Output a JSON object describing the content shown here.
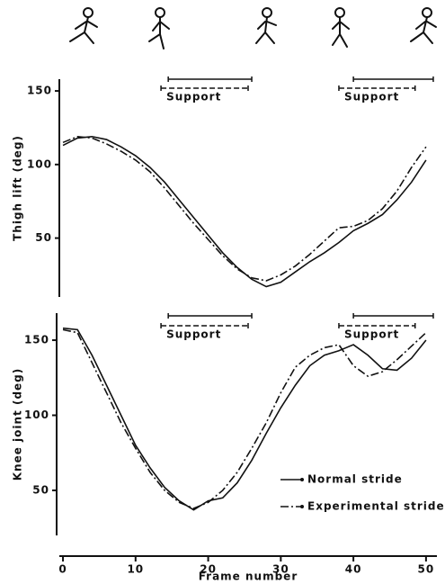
{
  "chart_data": [
    {
      "type": "line",
      "ylabel": "Thigh lift (deg)",
      "x": [
        0,
        2,
        4,
        6,
        8,
        10,
        12,
        14,
        16,
        18,
        20,
        22,
        24,
        26,
        28,
        30,
        32,
        34,
        36,
        38,
        40,
        42,
        44,
        46,
        48,
        50
      ],
      "xlim": [
        -0.5,
        51.5
      ],
      "ylim": [
        10,
        158
      ],
      "yticks": [
        50,
        100,
        150
      ],
      "series": [
        {
          "color": "#111111",
          "style": "solid",
          "values": [
            113,
            118,
            119,
            117,
            112,
            106,
            98,
            88,
            76,
            64,
            52,
            40,
            30,
            22,
            17,
            20,
            27,
            34,
            40,
            47,
            55,
            60,
            66,
            76,
            88,
            103
          ]
        },
        {
          "color": "#111111",
          "style": "dash-dot",
          "values": [
            115,
            119,
            118,
            114,
            109,
            103,
            95,
            84,
            72,
            60,
            49,
            38,
            29,
            23,
            21,
            25,
            31,
            39,
            48,
            57,
            58,
            62,
            70,
            82,
            98,
            112
          ]
        }
      ],
      "annotations": [
        {
          "text": "Support",
          "normal": [
            14.5,
            26
          ],
          "experimental": [
            13.5,
            25.5
          ]
        },
        {
          "text": "Support",
          "normal": [
            40,
            51
          ],
          "experimental": [
            38,
            48.5
          ]
        }
      ]
    },
    {
      "type": "line",
      "ylabel": "Knee joint (deg)",
      "xlabel": "Frame number",
      "x": [
        0,
        2,
        4,
        6,
        8,
        10,
        12,
        14,
        16,
        18,
        20,
        22,
        24,
        26,
        28,
        30,
        32,
        34,
        36,
        38,
        40,
        42,
        44,
        46,
        48,
        50
      ],
      "xlim": [
        -0.5,
        51.5
      ],
      "xticks": [
        0,
        10,
        20,
        30,
        40,
        50
      ],
      "ylim": [
        20,
        168
      ],
      "yticks": [
        50,
        100,
        150
      ],
      "series": [
        {
          "name": "Normal stride",
          "color": "#111111",
          "style": "solid",
          "values": [
            158,
            157,
            140,
            120,
            100,
            80,
            65,
            52,
            43,
            37,
            43,
            45,
            55,
            70,
            88,
            105,
            120,
            133,
            140,
            143,
            147,
            140,
            131,
            130,
            138,
            150
          ]
        },
        {
          "name": "Experimental stride",
          "color": "#111111",
          "style": "dash-dot",
          "values": [
            157,
            155,
            135,
            115,
            95,
            78,
            62,
            50,
            42,
            38,
            42,
            50,
            62,
            78,
            95,
            115,
            132,
            140,
            145,
            147,
            133,
            126,
            129,
            137,
            146,
            155
          ]
        }
      ],
      "annotations": [
        {
          "text": "Support",
          "normal": [
            14.5,
            26
          ],
          "experimental": [
            13.5,
            25.5
          ]
        },
        {
          "text": "Support",
          "normal": [
            40,
            51
          ],
          "experimental": [
            38,
            48.5
          ]
        }
      ]
    }
  ]
}
